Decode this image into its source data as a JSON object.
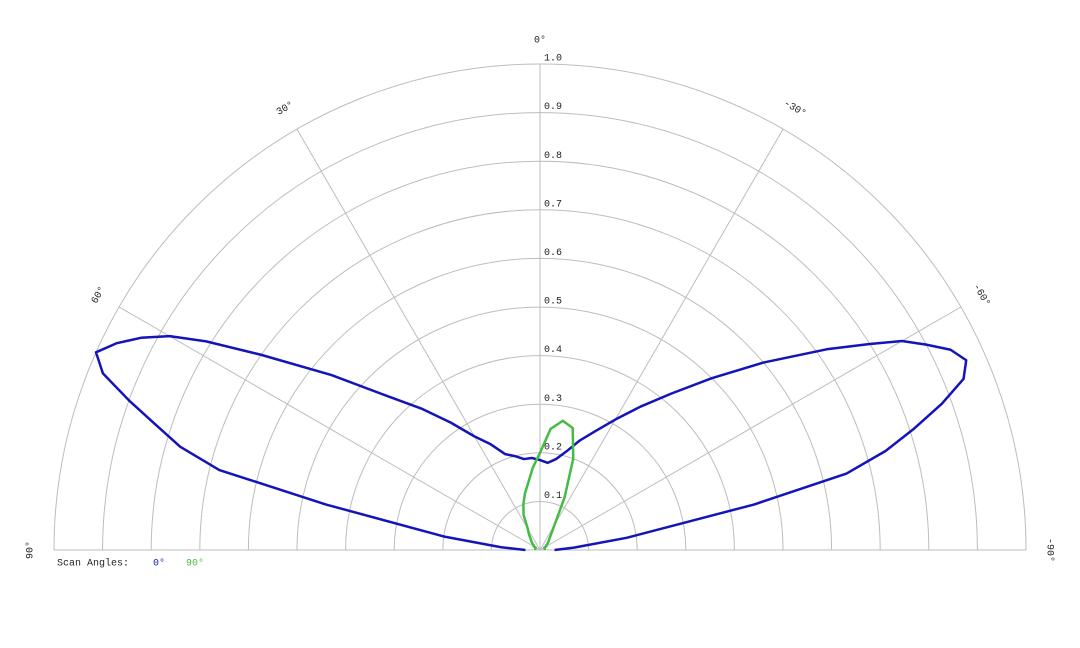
{
  "chart_data": {
    "type": "polar",
    "x": [
      -90,
      -86,
      -82,
      -78,
      -76,
      -74,
      -72,
      -70,
      -68,
      -66,
      -64,
      -62,
      -60,
      -58,
      -55,
      -50,
      -45,
      -40,
      -35,
      -30,
      -25,
      -20,
      -15,
      -10,
      -5,
      0,
      5,
      10,
      15,
      20,
      25,
      30,
      35,
      40,
      45,
      50,
      55,
      58,
      60,
      62,
      64,
      66,
      68,
      70,
      72,
      74,
      76,
      78,
      82,
      86,
      90
    ],
    "xticks": [
      {
        "value": 90,
        "label": "90°"
      },
      {
        "value": 60,
        "label": "60°"
      },
      {
        "value": 30,
        "label": "30°"
      },
      {
        "value": 0,
        "label": "0°"
      },
      {
        "value": -30,
        "label": "-30°"
      },
      {
        "value": -60,
        "label": "-60°"
      },
      {
        "value": -90,
        "label": "-90°"
      }
    ],
    "xlim": [
      90,
      -90
    ],
    "ylim": [
      0,
      1
    ],
    "yticks": [
      0.1,
      0.2,
      0.3,
      0.4,
      0.5,
      0.6,
      0.7,
      0.8,
      0.9,
      {
        "value": 1,
        "label": "1.0"
      }
    ],
    "grid": true,
    "legend_title": "Scan Angles:",
    "series": [
      {
        "name": "0°",
        "color": "#1414b8",
        "values": [
          0.03,
          0.07,
          0.18,
          0.45,
          0.65,
          0.74,
          0.81,
          0.88,
          0.94,
          0.96,
          0.94,
          0.9,
          0.86,
          0.8,
          0.72,
          0.6,
          0.5,
          0.42,
          0.36,
          0.31,
          0.27,
          0.24,
          0.21,
          0.19,
          0.18,
          0.185,
          0.19,
          0.19,
          0.2,
          0.21,
          0.24,
          0.27,
          0.32,
          0.38,
          0.45,
          0.56,
          0.7,
          0.81,
          0.88,
          0.93,
          0.97,
          1.0,
          0.97,
          0.9,
          0.83,
          0.77,
          0.68,
          0.45,
          0.2,
          0.08,
          0.03
        ]
      },
      {
        "name": "90°",
        "color": "#44bb44",
        "values": [
          0.01,
          0.01,
          0.01,
          0.01,
          0.01,
          0.01,
          0.01,
          0.01,
          0.01,
          0.01,
          0.01,
          0.01,
          0.015,
          0.015,
          0.015,
          0.02,
          0.025,
          0.03,
          0.04,
          0.06,
          0.12,
          0.2,
          0.26,
          0.27,
          0.25,
          0.2,
          0.17,
          0.14,
          0.12,
          0.1,
          0.08,
          0.05,
          0.04,
          0.03,
          0.025,
          0.02,
          0.015,
          0.015,
          0.015,
          0.01,
          0.01,
          0.01,
          0.01,
          0.01,
          0.01,
          0.01,
          0.01,
          0.01,
          0.01,
          0.01,
          0.01
        ]
      }
    ]
  }
}
